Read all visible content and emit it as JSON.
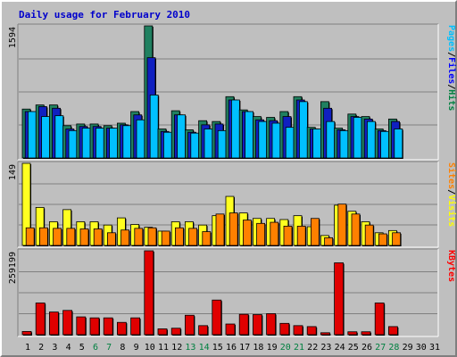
{
  "chart_title": "Daily usage for February 2010",
  "chart_data": {
    "type": "bar",
    "title": "Daily usage for February 2010",
    "categories": [
      "1",
      "2",
      "3",
      "4",
      "5",
      "6",
      "7",
      "8",
      "9",
      "10",
      "11",
      "12",
      "13",
      "14",
      "15",
      "16",
      "17",
      "18",
      "19",
      "20",
      "21",
      "22",
      "23",
      "24",
      "25",
      "26",
      "27",
      "28",
      "29",
      "30",
      "31"
    ],
    "weekend_days": [
      "6",
      "7",
      "13",
      "14",
      "20",
      "21",
      "27",
      "28"
    ],
    "panels": [
      {
        "id": "top",
        "max_label": "1594",
        "ylim": [
          0,
          1594
        ],
        "legend": [
          {
            "label": "Pages",
            "color": "#00c0ff"
          },
          {
            "sep": "/"
          },
          {
            "label": "Files",
            "color": "#0000ff"
          },
          {
            "sep": "/"
          },
          {
            "label": "Hits",
            "color": "#008040"
          }
        ],
        "series": [
          {
            "name": "Hits",
            "color": "#208060",
            "values": [
              590,
              640,
              640,
              390,
              410,
              410,
              390,
              420,
              560,
              1594,
              350,
              570,
              340,
              450,
              440,
              740,
              580,
              500,
              490,
              560,
              740,
              370,
              680,
              360,
              530,
              500,
              350,
              470,
              null,
              null,
              null
            ]
          },
          {
            "name": "Files",
            "color": "#1020c0",
            "values": [
              560,
              620,
              600,
              350,
              380,
              380,
              360,
              400,
              520,
              1210,
              320,
              520,
              310,
              400,
              410,
              700,
              560,
              460,
              450,
              500,
              700,
              350,
              600,
              340,
              500,
              470,
              330,
              440,
              null,
              null,
              null
            ]
          },
          {
            "name": "Pages",
            "color": "#00c0ff",
            "values": [
              560,
              500,
              510,
              330,
              360,
              360,
              360,
              390,
              460,
              760,
              310,
              520,
              300,
              350,
              330,
              700,
              560,
              440,
              420,
              370,
              680,
              350,
              440,
              330,
              490,
              440,
              320,
              350,
              null,
              null,
              null
            ]
          }
        ]
      },
      {
        "id": "middle",
        "max_label": "149",
        "ylim": [
          0,
          149
        ],
        "legend": [
          {
            "label": "Sites",
            "color": "#ff8000"
          },
          {
            "sep": "/"
          },
          {
            "label": "Visits",
            "color": "#ffff00"
          }
        ],
        "series": [
          {
            "name": "Visits",
            "color": "#ffff20",
            "values": [
              149,
              69,
              43,
              65,
              43,
              43,
              37,
              50,
              38,
              33,
              26,
              43,
              43,
              37,
              54,
              89,
              59,
              49,
              49,
              47,
              54,
              34,
              18,
              73,
              62,
              43,
              23,
              27,
              null,
              null,
              null
            ]
          },
          {
            "name": "Sites",
            "color": "#ff8000",
            "values": [
              32,
              32,
              31,
              31,
              30,
              30,
              23,
              28,
              31,
              32,
              26,
              32,
              31,
              25,
              57,
              59,
              46,
              40,
              42,
              35,
              35,
              49,
              14,
              75,
              57,
              37,
              21,
              23,
              null,
              null,
              null
            ]
          }
        ]
      },
      {
        "id": "bottom",
        "max_label": "259199",
        "ylim": [
          0,
          259199
        ],
        "legend": [
          {
            "label": "KBytes",
            "color": "#ff0000"
          }
        ],
        "series": [
          {
            "name": "KBytes",
            "color": "#e00000",
            "values": [
              10000,
              98000,
              70000,
              75000,
              55000,
              52000,
              52000,
              38000,
              52000,
              259199,
              18000,
              20000,
              60000,
              28000,
              107000,
              33000,
              63000,
              62000,
              65000,
              35000,
              28000,
              25000,
              6000,
              222000,
              9000,
              9000,
              98000,
              25000,
              null,
              null,
              null
            ]
          }
        ]
      }
    ],
    "grid": true,
    "grid_lines_per_panel": 3
  }
}
